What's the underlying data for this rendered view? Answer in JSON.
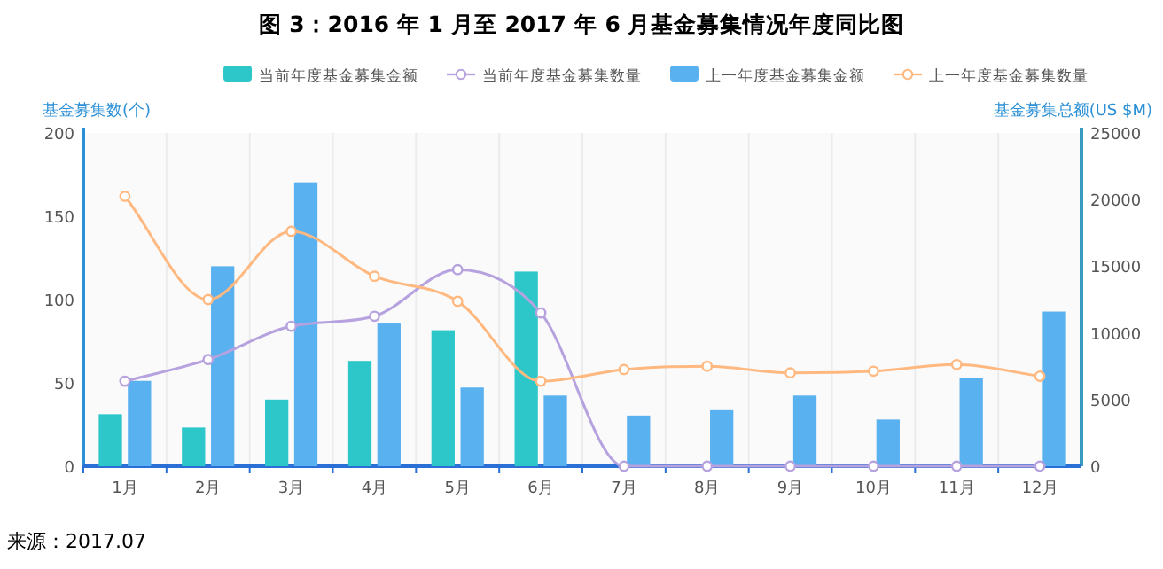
{
  "chart_data": {
    "type": "bar",
    "title": "图 3：2016 年 1 月至 2017 年 6 月基金募集情况年度同比图",
    "categories": [
      "1月",
      "2月",
      "3月",
      "4月",
      "5月",
      "6月",
      "7月",
      "8月",
      "9月",
      "10月",
      "11月",
      "12月"
    ],
    "series": [
      {
        "name": "当前年度基金募集金额",
        "axis": "y2",
        "color": "#2ec7c9",
        "values": [
          3900,
          2900,
          5000,
          7900,
          10200,
          14600,
          null,
          null,
          null,
          null,
          null,
          null
        ]
      },
      {
        "name": "当前年度基金募集数量",
        "type": "line",
        "axis": "y",
        "color": "#b6a2de",
        "values": [
          51,
          64,
          84,
          90,
          118,
          92,
          0,
          0,
          0,
          0,
          0,
          0
        ]
      },
      {
        "name": "上一年度基金募集金额",
        "axis": "y2",
        "color": "#5ab1ef",
        "values": [
          6400,
          15000,
          21300,
          10700,
          5900,
          5300,
          3800,
          4200,
          5300,
          3500,
          6600,
          11600
        ]
      },
      {
        "name": "上一年度基金募集数量",
        "type": "line",
        "axis": "y",
        "color": "#ffb980",
        "values": [
          162,
          100,
          141,
          114,
          99,
          51,
          58,
          60,
          56,
          57,
          61,
          54
        ]
      }
    ],
    "ylabel": "基金募集数(个)",
    "y2label": "基金募集总额(US $M)",
    "ylim": [
      0,
      200
    ],
    "yticks": [
      0,
      50,
      100,
      150,
      200
    ],
    "y2lim": [
      0,
      25000
    ],
    "y2ticks": [
      0,
      5000,
      10000,
      15000,
      20000,
      25000
    ],
    "marker": "circle",
    "legend": "top",
    "grid": "x",
    "annotations": [
      "来源：2017.07"
    ]
  }
}
